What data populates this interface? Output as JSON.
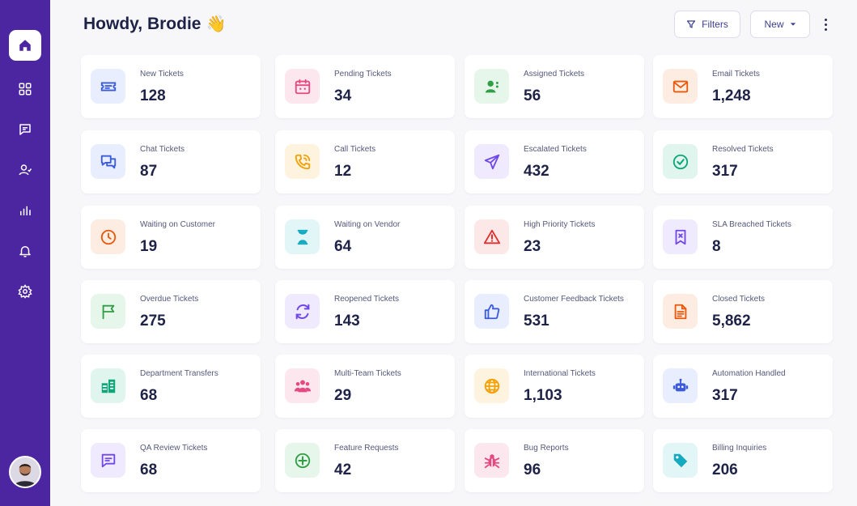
{
  "header": {
    "greeting": "Howdy, Brodie",
    "greeting_emoji": "👋",
    "filters_label": "Filters",
    "new_label": "New"
  },
  "sidebar": {
    "items": [
      {
        "name": "home",
        "icon": "home-icon",
        "active": true
      },
      {
        "name": "dashboard",
        "icon": "grid-icon"
      },
      {
        "name": "conversations",
        "icon": "chat-icon"
      },
      {
        "name": "contacts",
        "icon": "user-icon"
      },
      {
        "name": "reports",
        "icon": "bar-chart-icon"
      },
      {
        "name": "notifications",
        "icon": "bell-icon"
      },
      {
        "name": "settings",
        "icon": "gear-icon"
      }
    ],
    "avatar": "user-avatar"
  },
  "colors": {
    "sidebar": "#4c25a0",
    "blue": "#3b5bdb",
    "pink": "#e64980",
    "green": "#2f9e44",
    "orange": "#e8590c",
    "yellow": "#f59f00",
    "purple": "#7048e8",
    "teal": "#0ca678",
    "red": "#e03131",
    "cyan": "#15aabf"
  },
  "cards": [
    {
      "label": "New Tickets",
      "value": "128",
      "icon": "ticket-icon",
      "color": "blue"
    },
    {
      "label": "Pending Tickets",
      "value": "34",
      "icon": "calendar-icon",
      "color": "pink"
    },
    {
      "label": "Assigned Tickets",
      "value": "56",
      "icon": "user-assigned-icon",
      "color": "green"
    },
    {
      "label": "Email Tickets",
      "value": "1,248",
      "icon": "envelope-icon",
      "color": "orange"
    },
    {
      "label": "Chat Tickets",
      "value": "87",
      "icon": "chat-bubbles-icon",
      "color": "blue"
    },
    {
      "label": "Call Tickets",
      "value": "12",
      "icon": "phone-icon",
      "color": "yellow"
    },
    {
      "label": "Escalated Tickets",
      "value": "432",
      "icon": "paper-plane-icon",
      "color": "purple"
    },
    {
      "label": "Resolved Tickets",
      "value": "317",
      "icon": "check-circle-icon",
      "color": "teal"
    },
    {
      "label": "Waiting on Customer",
      "value": "19",
      "icon": "clock-icon",
      "color": "orange"
    },
    {
      "label": "Waiting on Vendor",
      "value": "64",
      "icon": "hourglass-icon",
      "color": "cyan"
    },
    {
      "label": "High Priority Tickets",
      "value": "23",
      "icon": "warning-icon",
      "color": "red"
    },
    {
      "label": "SLA Breached Tickets",
      "value": "8",
      "icon": "bookmark-x-icon",
      "color": "purple"
    },
    {
      "label": "Overdue Tickets",
      "value": "275",
      "icon": "flag-icon",
      "color": "green"
    },
    {
      "label": "Reopened Tickets",
      "value": "143",
      "icon": "refresh-icon",
      "color": "purple"
    },
    {
      "label": "Customer Feedback Tickets",
      "value": "531",
      "icon": "thumbs-up-icon",
      "color": "blue"
    },
    {
      "label": "Closed Tickets",
      "value": "5,862",
      "icon": "document-icon",
      "color": "orange"
    },
    {
      "label": "Department Transfers",
      "value": "68",
      "icon": "building-icon",
      "color": "teal"
    },
    {
      "label": "Multi-Team Tickets",
      "value": "29",
      "icon": "team-icon",
      "color": "pink"
    },
    {
      "label": "International Tickets",
      "value": "1,103",
      "icon": "globe-icon",
      "color": "yellow"
    },
    {
      "label": "Automation Handled",
      "value": "317",
      "icon": "robot-icon",
      "color": "blue"
    },
    {
      "label": "QA Review Tickets",
      "value": "68",
      "icon": "message-review-icon",
      "color": "purple"
    },
    {
      "label": "Feature Requests",
      "value": "42",
      "icon": "plus-circle-icon",
      "color": "green"
    },
    {
      "label": "Bug Reports",
      "value": "96",
      "icon": "bug-icon",
      "color": "pink"
    },
    {
      "label": "Billing Inquiries",
      "value": "206",
      "icon": "tag-icon",
      "color": "cyan"
    }
  ]
}
